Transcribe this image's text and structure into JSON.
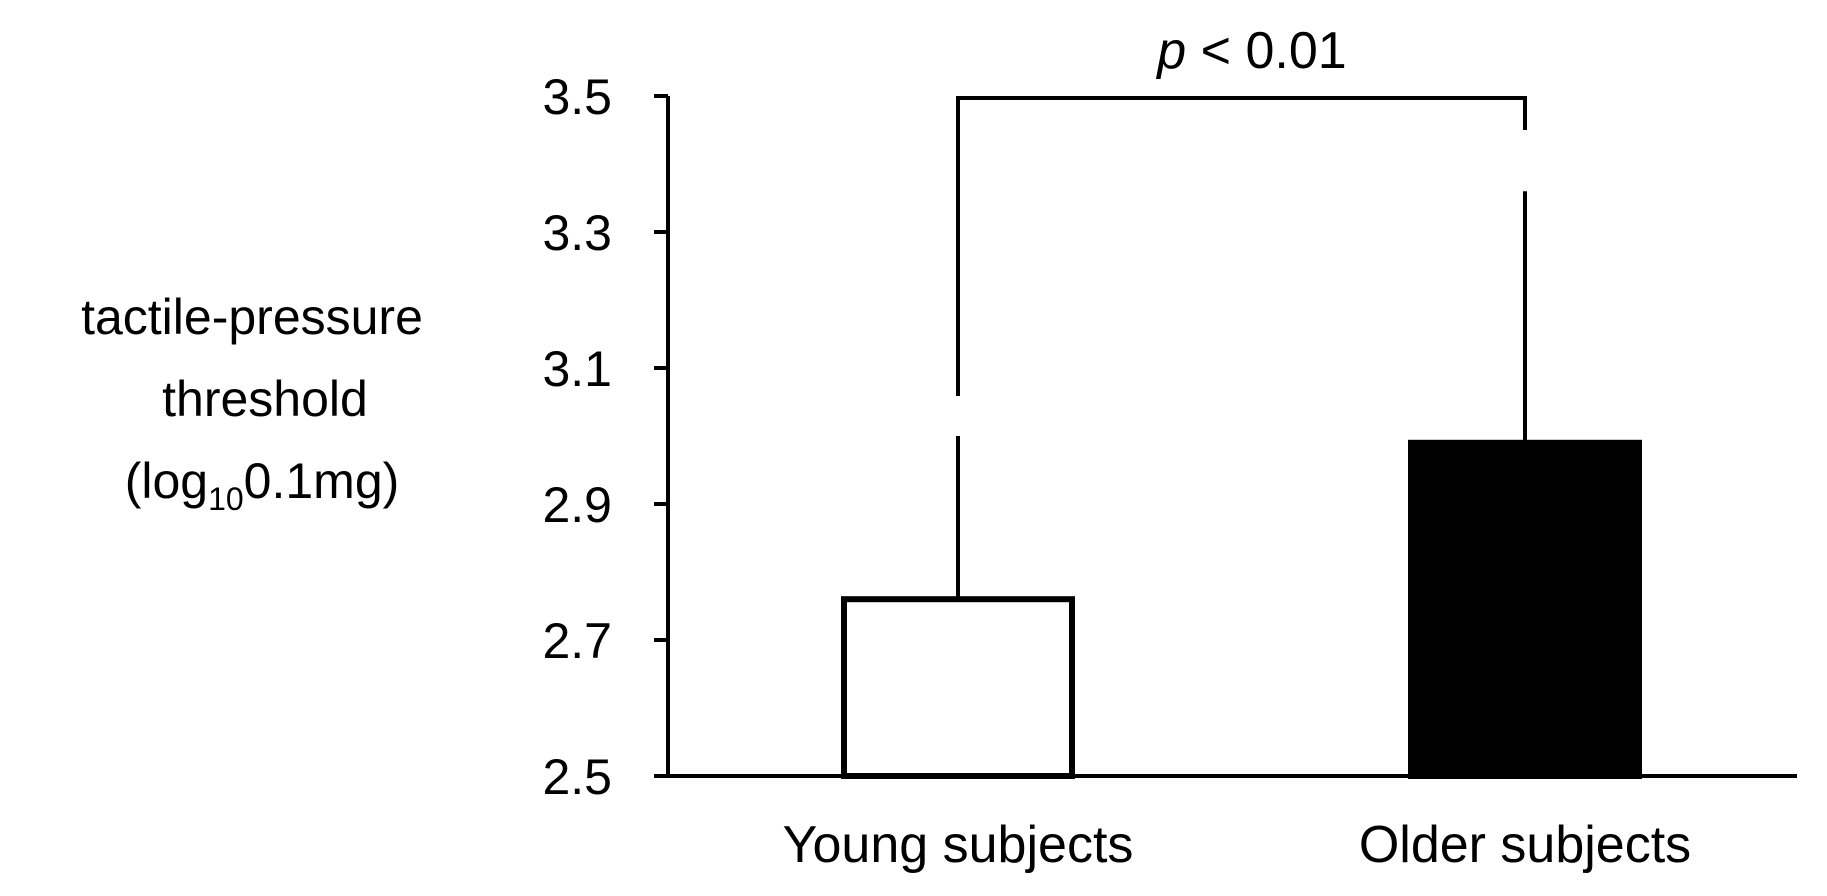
{
  "chart_data": {
    "type": "bar",
    "categories": [
      "Young subjects",
      "Older subjects"
    ],
    "values": [
      2.76,
      2.99
    ],
    "error_upper": [
      3.0,
      3.36
    ],
    "bar_fills": [
      "#ffffff",
      "#000000"
    ],
    "bar_stroke": "#000000",
    "ylim": [
      2.5,
      3.5
    ],
    "yticks": [
      "2.5",
      "2.7",
      "2.9",
      "3.1",
      "3.3",
      "3.5"
    ],
    "ylabel": {
      "line1": "tactile-pressure",
      "line2": "threshold",
      "line3_prefix": "(log",
      "line3_subscript": "10",
      "line3_suffix": "0.1mg)"
    },
    "xlabel": "",
    "title": "",
    "grid": false,
    "significance": {
      "p_symbol": "p",
      "p_text": " < 0.01"
    }
  }
}
